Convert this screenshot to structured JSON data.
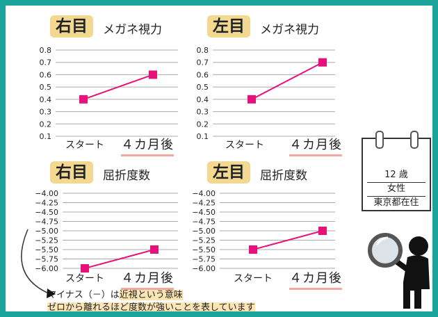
{
  "colors": {
    "frame": "#1aa39a",
    "tag": "#f2d891",
    "line": "#e8107a",
    "underline": "#f2a7a0",
    "grid": "#aaaaaa"
  },
  "panels": [
    {
      "tag": "右目",
      "subtitle": "メガネ視力"
    },
    {
      "tag": "左目",
      "subtitle": "メガネ視力"
    },
    {
      "tag": "右目",
      "subtitle": "屈折度数"
    },
    {
      "tag": "左目",
      "subtitle": "屈折度数"
    }
  ],
  "x_labels": {
    "start": "スタート",
    "after": "４カ月後"
  },
  "chart_data": [
    {
      "type": "line",
      "title": "右目 メガネ視力",
      "categories": [
        "スタート",
        "４カ月後"
      ],
      "series": [
        {
          "values": [
            0.4,
            0.6
          ]
        }
      ],
      "yticks": [
        "0.8",
        "0.7",
        "0.6",
        "0.5",
        "0.4",
        "0.3",
        "0.2",
        "0.1"
      ],
      "ylim": [
        0.1,
        0.8
      ],
      "grid": true
    },
    {
      "type": "line",
      "title": "左目 メガネ視力",
      "categories": [
        "スタート",
        "４カ月後"
      ],
      "series": [
        {
          "values": [
            0.4,
            0.7
          ]
        }
      ],
      "yticks": [
        "0.8",
        "0.7",
        "0.6",
        "0.5",
        "0.4",
        "0.3",
        "0.2",
        "0.1"
      ],
      "ylim": [
        0.1,
        0.8
      ],
      "grid": true
    },
    {
      "type": "line",
      "title": "右目 屈折度数",
      "categories": [
        "スタート",
        "４カ月後"
      ],
      "series": [
        {
          "values": [
            -6.0,
            -5.5
          ]
        }
      ],
      "yticks": [
        "−4.00",
        "−4.25",
        "−4.50",
        "−4.75",
        "−5.00",
        "−5.25",
        "−5.50",
        "−5.75",
        "−6.00"
      ],
      "ylim": [
        -6.0,
        -4.0
      ],
      "grid": true
    },
    {
      "type": "line",
      "title": "左目 屈折度数",
      "categories": [
        "スタート",
        "４カ月後"
      ],
      "series": [
        {
          "values": [
            -5.5,
            -5.0
          ]
        }
      ],
      "yticks": [
        "−4.00",
        "−4.25",
        "−4.50",
        "−4.75",
        "−5.00",
        "−5.25",
        "−5.50",
        "−5.75",
        "−6.00"
      ],
      "ylim": [
        -6.0,
        -4.0
      ],
      "grid": true
    }
  ],
  "profile": {
    "age": "12 歳",
    "gender": "女性",
    "residence": "東京都在住"
  },
  "note": {
    "line1_prefix": "マイナス（－）は",
    "line1_rest": "近視という意味",
    "line2": "ゼロから離れるほど度数が強いことを表しています"
  },
  "icons": {
    "magnifier": "magnifier-person-icon",
    "calendar": "calendar-icon"
  }
}
